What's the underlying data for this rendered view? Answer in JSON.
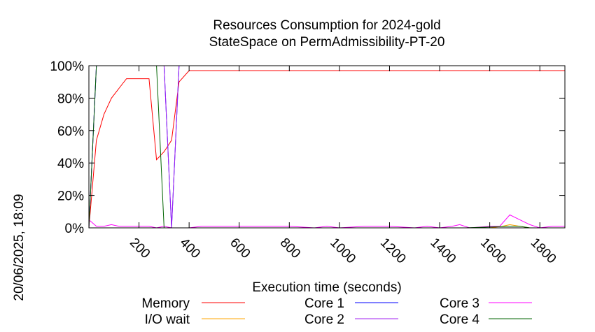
{
  "chart_data": {
    "type": "line",
    "title": "Resources Consumption for 2024-gold",
    "subtitle": "StateSpace on PermAdmissibility-PT-20",
    "xlabel": "Execution time (seconds)",
    "ylabel": "",
    "side_label": "20/06/2025, 18:09",
    "xlim": [
      0,
      1900
    ],
    "ylim": [
      0,
      100
    ],
    "x_ticks": [
      200,
      400,
      600,
      800,
      1000,
      1200,
      1400,
      1600,
      1800
    ],
    "y_ticks": [
      0,
      20,
      40,
      60,
      80,
      100
    ],
    "y_tick_labels": [
      "0%",
      "20%",
      "40%",
      "60%",
      "80%",
      "100%"
    ],
    "grid": false,
    "legend_position": "bottom",
    "series": [
      {
        "name": "Memory",
        "color": "#ff0000",
        "x": [
          0,
          30,
          60,
          90,
          120,
          150,
          180,
          210,
          240,
          270,
          300,
          330,
          360,
          400,
          500,
          1000,
          1500,
          1900
        ],
        "y": [
          0,
          54,
          70,
          80,
          86,
          92,
          92,
          92,
          92,
          42,
          47,
          54,
          90,
          97,
          97,
          97,
          97,
          97
        ]
      },
      {
        "name": "I/O wait",
        "color": "#ffa500",
        "x": [
          0,
          300,
          600,
          900,
          1200,
          1500,
          1600,
          1650,
          1680,
          1720,
          1760,
          1800,
          1900
        ],
        "y": [
          0,
          0,
          0,
          0,
          0,
          0,
          0,
          1,
          2,
          1,
          0,
          0,
          0
        ]
      },
      {
        "name": "Core 1",
        "color": "#0000ff",
        "x": [
          0,
          30,
          60,
          100,
          150,
          200,
          240,
          270,
          300,
          330,
          360,
          500,
          1000,
          1500,
          1900
        ],
        "y": [
          0,
          100,
          100,
          100,
          100,
          100,
          100,
          100,
          100,
          0,
          100,
          100,
          100,
          100,
          100
        ]
      },
      {
        "name": "Core 2",
        "color": "#a020f0",
        "x": [
          0,
          30,
          60,
          100,
          200,
          240,
          270,
          300,
          330,
          360,
          500,
          1000,
          1500,
          1900
        ],
        "y": [
          0,
          100,
          100,
          100,
          100,
          100,
          100,
          100,
          0,
          100,
          100,
          100,
          100,
          100
        ]
      },
      {
        "name": "Core 3",
        "color": "#ff00ff",
        "x": [
          0,
          30,
          60,
          90,
          120,
          150,
          200,
          240,
          270,
          300,
          330,
          360,
          400,
          450,
          600,
          800,
          900,
          950,
          1000,
          1100,
          1200,
          1300,
          1350,
          1400,
          1450,
          1480,
          1520,
          1600,
          1640,
          1680,
          1720,
          1760,
          1800,
          1850,
          1900
        ],
        "y": [
          5,
          1,
          1,
          2,
          1,
          1,
          1,
          1,
          0,
          1,
          0,
          0,
          0,
          1,
          1,
          1,
          0,
          1,
          0,
          1,
          1,
          0,
          1,
          0,
          1,
          2,
          0,
          1,
          1,
          8,
          5,
          2,
          0,
          1,
          1
        ]
      },
      {
        "name": "Core 4",
        "color": "#006400",
        "x": [
          0,
          30,
          60,
          100,
          200,
          240,
          270,
          300,
          330,
          360,
          500,
          1000,
          1500,
          1680,
          1720,
          1760,
          1900
        ],
        "y": [
          0,
          100,
          100,
          100,
          100,
          100,
          100,
          0,
          0,
          0,
          0,
          0,
          0,
          1,
          1,
          0,
          0
        ]
      }
    ]
  }
}
